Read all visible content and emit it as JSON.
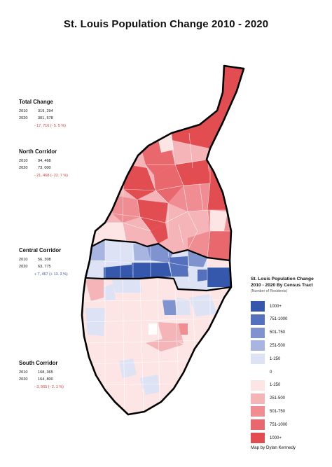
{
  "title": "St. Louis Population Change 2010 - 2020",
  "total": {
    "heading": "Total Change",
    "rows": [
      {
        "year": "2010",
        "value": "319, 294"
      },
      {
        "year": "2020",
        "value": "301, 578"
      }
    ],
    "diff": "- 17, 716  (- 5. 5 %)"
  },
  "north": {
    "heading": "North Corridor",
    "rows": [
      {
        "year": "2010",
        "value": "94, 468"
      },
      {
        "year": "2020",
        "value": "73, 000"
      }
    ],
    "diff": "- 21, 468  (- 22. 7 %)"
  },
  "central": {
    "heading": "Central Corridor",
    "rows": [
      {
        "year": "2010",
        "value": "56, 308"
      },
      {
        "year": "2020",
        "value": "63, 775"
      }
    ],
    "diff": "+ 7, 467  (+ 13. 3 %)"
  },
  "south": {
    "heading": "South Corridor",
    "rows": [
      {
        "year": "2010",
        "value": "168, 365"
      },
      {
        "year": "2020",
        "value": "164, 800"
      }
    ],
    "diff": "- 3, 565  (- 2. 1 %)"
  },
  "legend": {
    "title_line1": "St. Louis Population Change",
    "title_line2": "2010 - 2020 By  Census Tract",
    "subtitle": "(Number of Residents)",
    "items": [
      {
        "label": "1000+",
        "color": "#3558ad"
      },
      {
        "label": "751-1000",
        "color": "#5571bd"
      },
      {
        "label": "501-750",
        "color": "#7f93cf"
      },
      {
        "label": "251-500",
        "color": "#a7b5e0"
      },
      {
        "label": "1-250",
        "color": "#dde3f5"
      },
      {
        "label": "0",
        "color": "#ffffff"
      },
      {
        "label": "1-250",
        "color": "#fde5e5"
      },
      {
        "label": "251-500",
        "color": "#f4b4b8"
      },
      {
        "label": "501-750",
        "color": "#ef8d92"
      },
      {
        "label": "751-1000",
        "color": "#e9686d"
      },
      {
        "label": "1000+",
        "color": "#e24d52"
      }
    ]
  },
  "credit": "Map by Dylan Kennedy"
}
